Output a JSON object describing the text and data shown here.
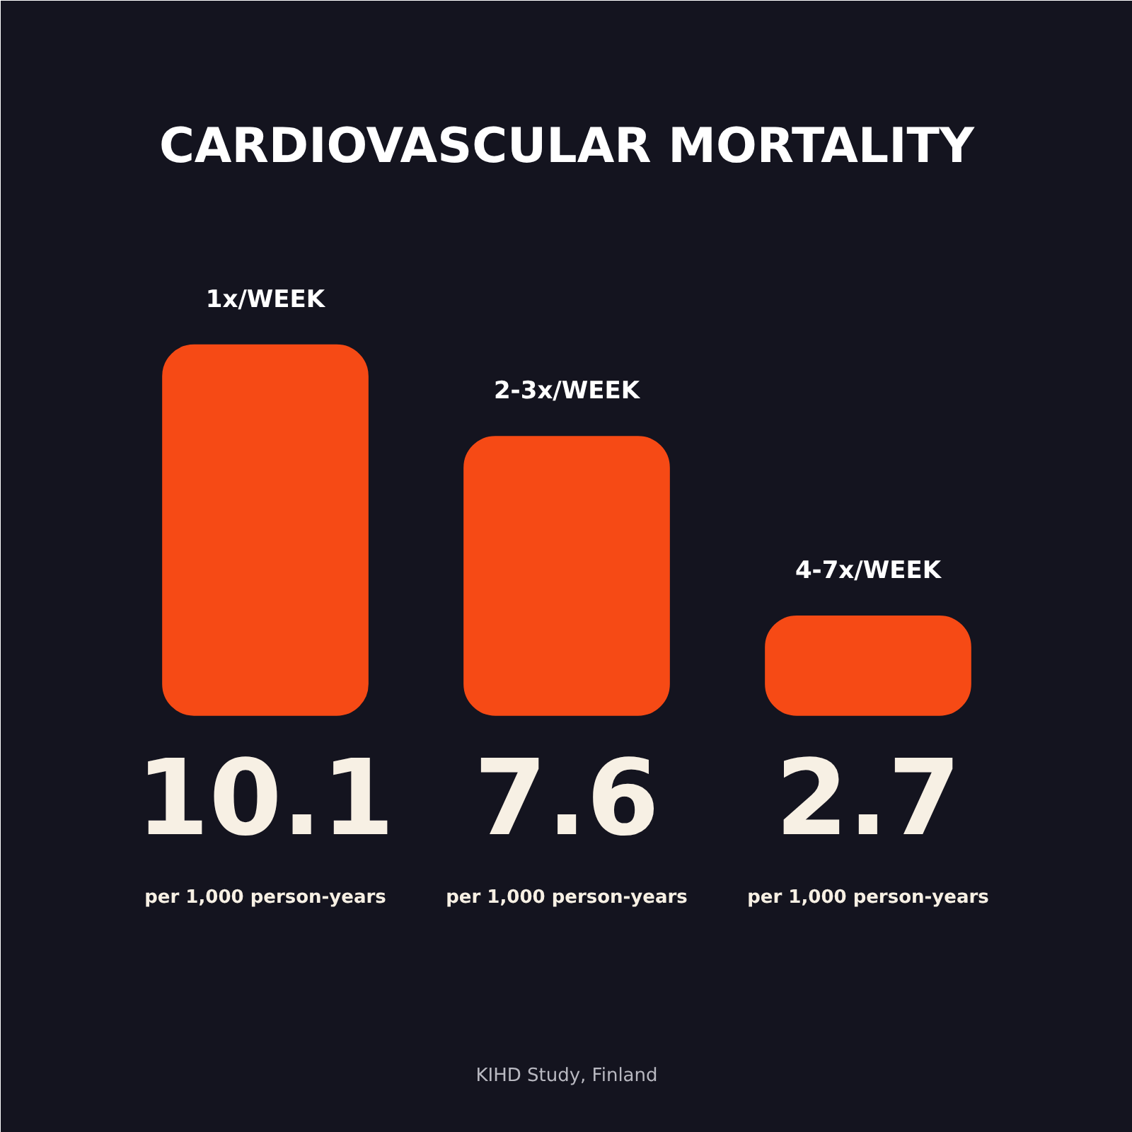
{
  "chart_data": {
    "type": "bar",
    "title": "CARDIOVASCULAR MORTALITY",
    "categories": [
      "1x/WEEK",
      "2-3x/WEEK",
      "4-7x/WEEK"
    ],
    "values": [
      10.1,
      7.6,
      2.7
    ],
    "color": "#f64a15",
    "data_labels": true,
    "annotations": [
      "per 1,000 person-years",
      "per 1,000 person-years",
      "per 1,000 person-years",
      "KIHD Study, Finland"
    ]
  }
}
